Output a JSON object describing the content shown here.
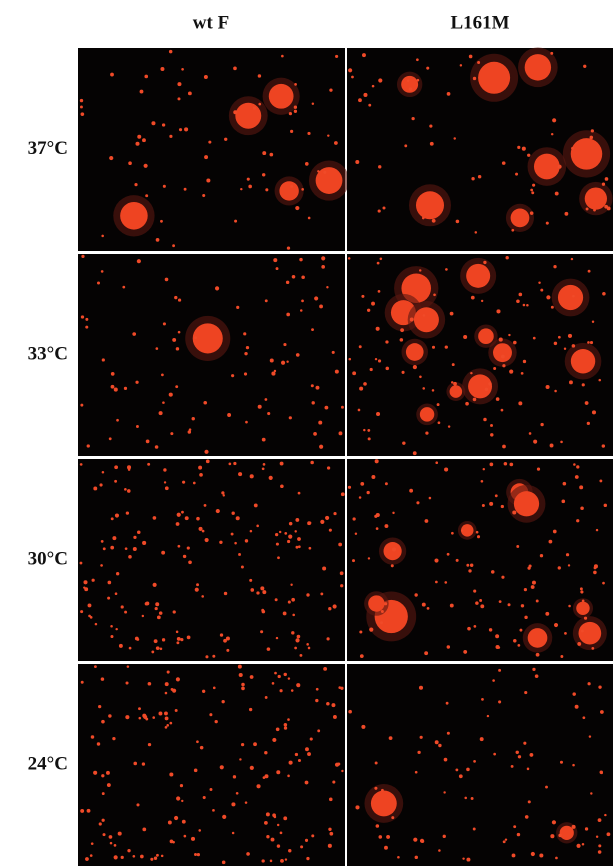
{
  "header": {
    "columns": [
      "wt F",
      "L161M"
    ]
  },
  "rows": [
    {
      "label": "37°C"
    },
    {
      "label": "33°C"
    },
    {
      "label": "30°C"
    },
    {
      "label": "24°C"
    }
  ]
}
